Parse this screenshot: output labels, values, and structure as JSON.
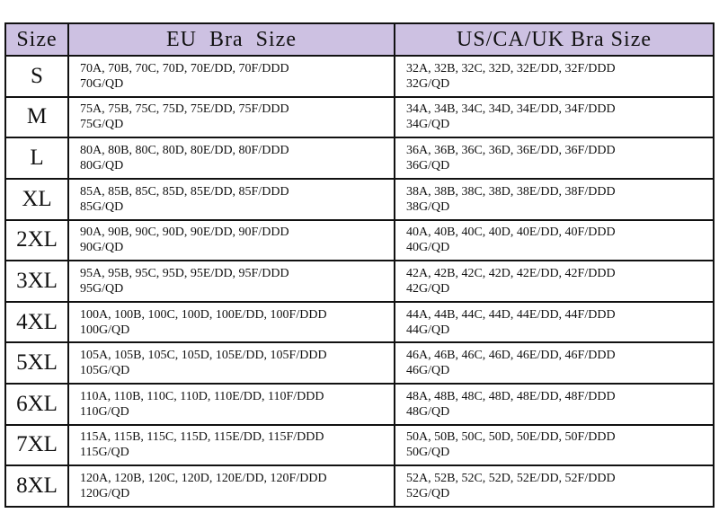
{
  "table": {
    "header": [
      "Size",
      "EU  Bra  Size",
      "US/CA/UK Bra Size"
    ],
    "rows": [
      {
        "size": "S",
        "eu": [
          "70A, 70B, 70C, 70D, 70E/DD, 70F/DDD",
          "70G/QD"
        ],
        "us": [
          "32A, 32B, 32C, 32D, 32E/DD, 32F/DDD",
          "32G/QD"
        ]
      },
      {
        "size": "M",
        "eu": [
          "75A, 75B, 75C, 75D, 75E/DD, 75F/DDD",
          "75G/QD"
        ],
        "us": [
          "34A, 34B, 34C, 34D, 34E/DD, 34F/DDD",
          "34G/QD"
        ]
      },
      {
        "size": "L",
        "eu": [
          "80A, 80B, 80C, 80D, 80E/DD, 80F/DDD",
          "80G/QD"
        ],
        "us": [
          "36A, 36B, 36C, 36D, 36E/DD, 36F/DDD",
          "36G/QD"
        ]
      },
      {
        "size": "XL",
        "eu": [
          "85A, 85B, 85C, 85D, 85E/DD, 85F/DDD",
          "85G/QD"
        ],
        "us": [
          "38A, 38B, 38C, 38D, 38E/DD, 38F/DDD",
          "38G/QD"
        ]
      },
      {
        "size": "2XL",
        "eu": [
          "90A, 90B, 90C, 90D, 90E/DD, 90F/DDD",
          "90G/QD"
        ],
        "us": [
          "40A, 40B, 40C, 40D, 40E/DD, 40F/DDD",
          "40G/QD"
        ]
      },
      {
        "size": "3XL",
        "eu": [
          "95A, 95B, 95C, 95D, 95E/DD, 95F/DDD",
          "95G/QD"
        ],
        "us": [
          "42A, 42B, 42C, 42D, 42E/DD, 42F/DDD",
          "42G/QD"
        ]
      },
      {
        "size": "4XL",
        "eu": [
          "100A, 100B, 100C, 100D, 100E/DD, 100F/DDD",
          "100G/QD"
        ],
        "us": [
          "44A, 44B, 44C, 44D, 44E/DD, 44F/DDD",
          "44G/QD"
        ]
      },
      {
        "size": "5XL",
        "eu": [
          "105A, 105B, 105C, 105D, 105E/DD, 105F/DDD",
          "105G/QD"
        ],
        "us": [
          "46A, 46B, 46C, 46D, 46E/DD, 46F/DDD",
          "46G/QD"
        ]
      },
      {
        "size": "6XL",
        "eu": [
          "110A, 110B, 110C, 110D, 110E/DD, 110F/DDD",
          "110G/QD"
        ],
        "us": [
          "48A, 48B, 48C, 48D, 48E/DD, 48F/DDD",
          "48G/QD"
        ]
      },
      {
        "size": "7XL",
        "eu": [
          "115A, 115B, 115C, 115D, 115E/DD, 115F/DDD",
          "115G/QD"
        ],
        "us": [
          "50A, 50B, 50C, 50D, 50E/DD, 50F/DDD",
          "50G/QD"
        ]
      },
      {
        "size": "8XL",
        "eu": [
          "120A, 120B, 120C, 120D, 120E/DD, 120F/DDD",
          "120G/QD"
        ],
        "us": [
          "52A, 52B, 52C, 52D, 52E/DD, 52F/DDD",
          "52G/QD"
        ]
      }
    ]
  }
}
